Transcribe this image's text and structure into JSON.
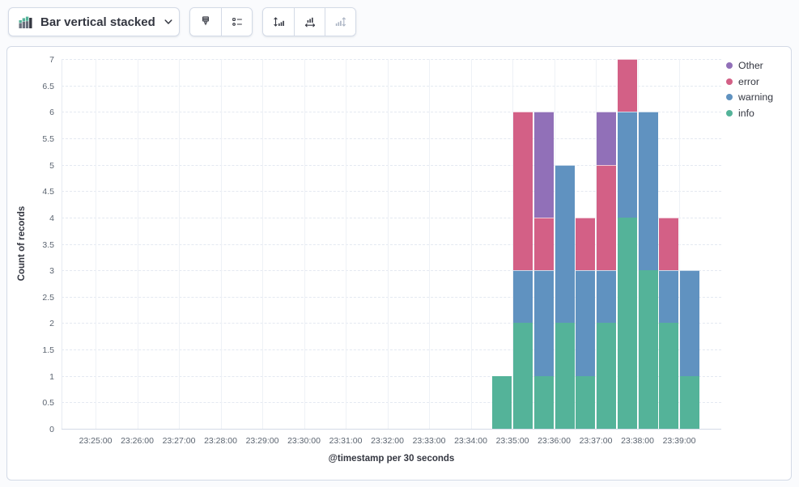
{
  "toolbar": {
    "chart_type": {
      "label": "Bar vertical stacked",
      "icon": "stacked-bar-chart-icon"
    },
    "buttons": {
      "visual_options": {
        "icon": "brush-icon",
        "disabled": false
      },
      "legend_settings": {
        "icon": "legend-list-icon",
        "disabled": false
      },
      "left_axis": {
        "icon": "vertical-axis-icon",
        "disabled": false
      },
      "bottom_axis": {
        "icon": "horizontal-axis-icon",
        "disabled": false
      },
      "right_axis": {
        "icon": "right-axis-icon",
        "disabled": true
      }
    }
  },
  "chart_data": {
    "type": "bar",
    "stacked": true,
    "orientation": "vertical",
    "xlabel": "@timestamp per 30 seconds",
    "ylabel": "Count of records",
    "ylim": [
      0,
      7
    ],
    "y_tick_step": 0.5,
    "y_ticks": [
      "0",
      "0.5",
      "1",
      "1.5",
      "2",
      "2.5",
      "3",
      "3.5",
      "4",
      "4.5",
      "5",
      "5.5",
      "6",
      "6.5",
      "7"
    ],
    "x_ticks": [
      "23:25:00",
      "23:26:00",
      "23:27:00",
      "23:28:00",
      "23:29:00",
      "23:30:00",
      "23:31:00",
      "23:32:00",
      "23:33:00",
      "23:34:00",
      "23:35:00",
      "23:36:00",
      "23:37:00",
      "23:38:00",
      "23:39:00"
    ],
    "bucket_seconds": 30,
    "categories": [
      "23:34:30",
      "23:35:00",
      "23:35:30",
      "23:36:00",
      "23:36:30",
      "23:37:00",
      "23:37:30",
      "23:38:00",
      "23:38:30",
      "23:39:00"
    ],
    "series": [
      {
        "name": "info",
        "color": "#54B399",
        "values": [
          1,
          2,
          1,
          2,
          1,
          2,
          4,
          3,
          2,
          1
        ]
      },
      {
        "name": "warning",
        "color": "#6092C0",
        "values": [
          0,
          1,
          2,
          3,
          2,
          1,
          2,
          3,
          1,
          2
        ]
      },
      {
        "name": "error",
        "color": "#D36086",
        "values": [
          0,
          3,
          1,
          0,
          1,
          2,
          1,
          0,
          1,
          0
        ]
      },
      {
        "name": "Other",
        "color": "#9170B8",
        "values": [
          0,
          0,
          2,
          0,
          0,
          1,
          0,
          0,
          0,
          0
        ]
      }
    ],
    "legend": {
      "position": "right",
      "items": [
        "Other",
        "error",
        "warning",
        "info"
      ]
    },
    "grid": true
  }
}
